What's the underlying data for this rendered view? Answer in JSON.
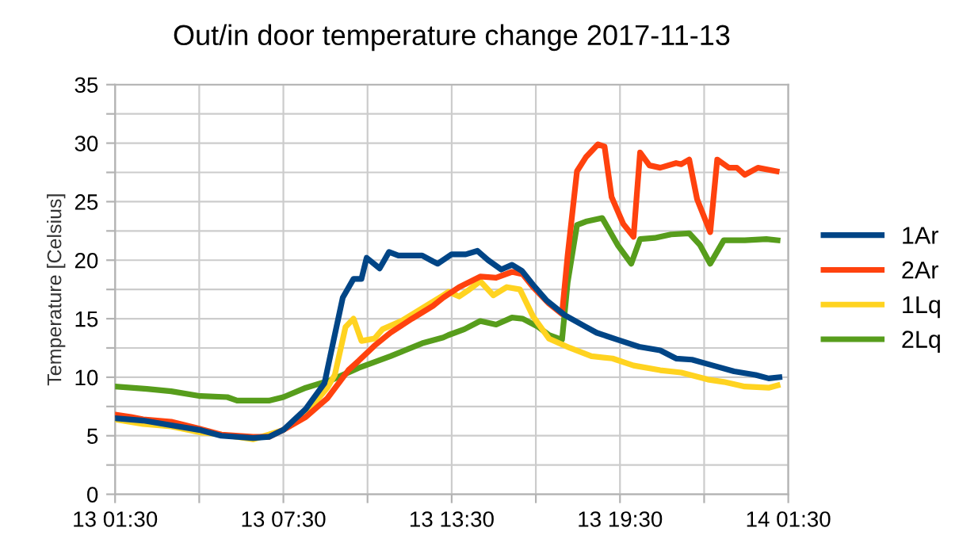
{
  "chart_data": {
    "type": "line",
    "title": "Out/in door temperature change 2017-11-13",
    "ylabel": "Temperature [Celsius]",
    "xlim": [
      "2017-11-13T01:30",
      "2017-11-14T01:30"
    ],
    "xticks": [
      {
        "value": "2017-11-13T01:30",
        "label": "13 01:30"
      },
      {
        "value": "2017-11-13T04:30",
        "label": null
      },
      {
        "value": "2017-11-13T07:30",
        "label": "13 07:30"
      },
      {
        "value": "2017-11-13T10:30",
        "label": null
      },
      {
        "value": "2017-11-13T13:30",
        "label": "13 13:30"
      },
      {
        "value": "2017-11-13T16:30",
        "label": null
      },
      {
        "value": "2017-11-13T19:30",
        "label": "13 19:30"
      },
      {
        "value": "2017-11-13T22:30",
        "label": null
      },
      {
        "value": "2017-11-14T01:30",
        "label": "14 01:30"
      }
    ],
    "ylim": [
      0,
      35
    ],
    "yticks": [
      0,
      {
        "value": 2.5,
        "label": null
      },
      5,
      {
        "value": 7.5,
        "label": null
      },
      10,
      {
        "value": 12.5,
        "label": null
      },
      15,
      {
        "value": 17.5,
        "label": null
      },
      20,
      {
        "value": 22.5,
        "label": null
      },
      25,
      {
        "value": 27.5,
        "label": null
      },
      30,
      {
        "value": 32.5,
        "label": null
      },
      35
    ],
    "grid": true,
    "legend": "right",
    "marker": "none",
    "line_style": "solid",
    "series": [
      {
        "name": "1Ar",
        "color": "#004586",
        "x": [
          "2017-11-13T01:30",
          "2017-11-13T02:30",
          "2017-11-13T03:30",
          "2017-11-13T04:30",
          "2017-11-13T05:17",
          "2017-11-13T06:25",
          "2017-11-13T06:59",
          "2017-11-13T07:30",
          "2017-11-13T08:18",
          "2017-11-13T08:58",
          "2017-11-13T09:15",
          "2017-11-13T09:37",
          "2017-11-13T10:00",
          "2017-11-13T10:17",
          "2017-11-13T10:28",
          "2017-11-13T10:56",
          "2017-11-13T11:16",
          "2017-11-13T11:36",
          "2017-11-13T12:27",
          "2017-11-13T12:50",
          "2017-11-13T13:00",
          "2017-11-13T13:30",
          "2017-11-13T14:00",
          "2017-11-13T14:25",
          "2017-11-13T14:48",
          "2017-11-13T15:16",
          "2017-11-13T15:39",
          "2017-11-13T16:00",
          "2017-11-13T16:24",
          "2017-11-13T16:52",
          "2017-11-13T17:32",
          "2017-11-13T18:17",
          "2017-11-13T18:40",
          "2017-11-13T19:25",
          "2017-11-13T20:11",
          "2017-11-13T20:56",
          "2017-11-13T21:30",
          "2017-11-13T22:04",
          "2017-11-13T22:49",
          "2017-11-13T23:34",
          "2017-11-14T00:20",
          "2017-11-14T00:48",
          "2017-11-14T01:11"
        ],
        "values": [
          6.5,
          6.3,
          5.9,
          5.5,
          5.0,
          4.8,
          4.9,
          5.5,
          7.3,
          9.5,
          12.7,
          16.8,
          18.4,
          18.4,
          20.2,
          19.3,
          20.7,
          20.4,
          20.4,
          19.9,
          19.7,
          20.5,
          20.5,
          20.8,
          20.0,
          19.2,
          19.6,
          19.1,
          17.9,
          16.6,
          15.3,
          14.3,
          13.8,
          13.2,
          12.6,
          12.3,
          11.6,
          11.5,
          11.0,
          10.5,
          10.2,
          9.9,
          10.0
        ]
      },
      {
        "name": "2Ar",
        "color": "#ff420e",
        "x": [
          "2017-11-13T01:30",
          "2017-11-13T02:04",
          "2017-11-13T02:30",
          "2017-11-13T03:30",
          "2017-11-13T04:30",
          "2017-11-13T05:17",
          "2017-11-13T06:25",
          "2017-11-13T06:59",
          "2017-11-13T07:30",
          "2017-11-13T08:18",
          "2017-11-13T09:04",
          "2017-11-13T09:49",
          "2017-11-13T10:11",
          "2017-11-13T10:45",
          "2017-11-13T11:19",
          "2017-11-13T12:05",
          "2017-11-13T12:50",
          "2017-11-13T13:12",
          "2017-11-13T13:46",
          "2017-11-13T14:31",
          "2017-11-13T15:05",
          "2017-11-13T15:39",
          "2017-11-13T16:02",
          "2017-11-13T16:24",
          "2017-11-13T16:58",
          "2017-11-13T17:26",
          "2017-11-13T17:38",
          "2017-11-13T17:58",
          "2017-11-13T18:17",
          "2017-11-13T18:43",
          "2017-11-13T18:57",
          "2017-11-13T19:12",
          "2017-11-13T19:37",
          "2017-11-13T19:59",
          "2017-11-13T20:13",
          "2017-11-13T20:33",
          "2017-11-13T20:56",
          "2017-11-13T21:30",
          "2017-11-13T21:41",
          "2017-11-13T21:58",
          "2017-11-13T22:15",
          "2017-11-13T22:43",
          "2017-11-13T22:58",
          "2017-11-13T23:23",
          "2017-11-13T23:40",
          "2017-11-13T23:57",
          "2017-11-14T00:25",
          "2017-11-14T01:05"
        ],
        "values": [
          6.8,
          6.6,
          6.4,
          6.2,
          5.6,
          5.1,
          4.9,
          4.9,
          5.5,
          6.6,
          8.2,
          10.6,
          11.4,
          12.7,
          13.8,
          15.0,
          16.1,
          16.8,
          17.7,
          18.6,
          18.5,
          19.0,
          18.8,
          17.7,
          16.3,
          15.4,
          20.4,
          27.6,
          28.8,
          29.9,
          29.7,
          25.4,
          23.1,
          22.0,
          29.2,
          28.1,
          27.9,
          28.3,
          28.2,
          28.6,
          25.2,
          22.4,
          28.6,
          27.9,
          27.9,
          27.3,
          27.9,
          27.6
        ]
      },
      {
        "name": "1Lq",
        "color": "#ffd320",
        "x": [
          "2017-11-13T01:30",
          "2017-11-13T02:30",
          "2017-11-13T03:30",
          "2017-11-13T04:30",
          "2017-11-13T05:17",
          "2017-11-13T06:25",
          "2017-11-13T06:59",
          "2017-11-13T07:30",
          "2017-11-13T08:18",
          "2017-11-13T09:04",
          "2017-11-13T09:20",
          "2017-11-13T09:43",
          "2017-11-13T10:00",
          "2017-11-13T10:17",
          "2017-11-13T10:45",
          "2017-11-13T11:02",
          "2017-11-13T11:42",
          "2017-11-13T12:27",
          "2017-11-13T13:12",
          "2017-11-13T13:23",
          "2017-11-13T13:46",
          "2017-11-13T14:08",
          "2017-11-13T14:31",
          "2017-11-13T14:59",
          "2017-11-13T15:28",
          "2017-11-13T15:56",
          "2017-11-13T16:24",
          "2017-11-13T16:58",
          "2017-11-13T17:43",
          "2017-11-13T18:29",
          "2017-11-13T19:14",
          "2017-11-13T19:59",
          "2017-11-13T20:56",
          "2017-11-13T21:41",
          "2017-11-13T22:38",
          "2017-11-13T23:12",
          "2017-11-13T23:57",
          "2017-11-14T00:48",
          "2017-11-14T01:07"
        ],
        "values": [
          6.4,
          6.0,
          5.8,
          5.3,
          5.1,
          4.7,
          5.1,
          5.5,
          6.9,
          9.1,
          10.2,
          14.3,
          15.0,
          13.1,
          13.3,
          14.1,
          14.8,
          15.9,
          17.0,
          17.3,
          16.9,
          17.5,
          18.2,
          17.0,
          17.7,
          17.5,
          15.2,
          13.3,
          12.5,
          11.8,
          11.6,
          11.0,
          10.6,
          10.4,
          9.8,
          9.6,
          9.2,
          9.1,
          9.3
        ]
      },
      {
        "name": "2Lq",
        "color": "#579d1c",
        "x": [
          "2017-11-13T01:30",
          "2017-11-13T02:38",
          "2017-11-13T03:30",
          "2017-11-13T04:30",
          "2017-11-13T05:30",
          "2017-11-13T05:51",
          "2017-11-13T06:59",
          "2017-11-13T07:30",
          "2017-11-13T08:18",
          "2017-11-13T09:15",
          "2017-11-13T10:11",
          "2017-11-13T11:19",
          "2017-11-13T12:27",
          "2017-11-13T13:12",
          "2017-11-13T13:23",
          "2017-11-13T13:57",
          "2017-11-13T14:31",
          "2017-11-13T15:05",
          "2017-11-13T15:39",
          "2017-11-13T16:02",
          "2017-11-13T16:35",
          "2017-11-13T16:58",
          "2017-11-13T17:26",
          "2017-11-13T17:38",
          "2017-11-13T17:58",
          "2017-11-13T18:17",
          "2017-11-13T18:52",
          "2017-11-13T19:25",
          "2017-11-13T19:54",
          "2017-11-13T20:13",
          "2017-11-13T20:44",
          "2017-11-13T21:19",
          "2017-11-13T21:58",
          "2017-11-13T22:21",
          "2017-11-13T22:43",
          "2017-11-13T23:12",
          "2017-11-13T23:57",
          "2017-11-14T00:43",
          "2017-11-14T01:07"
        ],
        "values": [
          9.2,
          9.0,
          8.8,
          8.4,
          8.3,
          8.0,
          8.0,
          8.3,
          9.1,
          9.8,
          10.8,
          11.8,
          12.9,
          13.4,
          13.6,
          14.1,
          14.8,
          14.5,
          15.1,
          15.0,
          14.3,
          13.6,
          13.2,
          18.1,
          23.0,
          23.3,
          23.6,
          21.3,
          19.7,
          21.8,
          21.9,
          22.2,
          22.3,
          21.3,
          19.7,
          21.7,
          21.7,
          21.8,
          21.7
        ]
      }
    ]
  }
}
